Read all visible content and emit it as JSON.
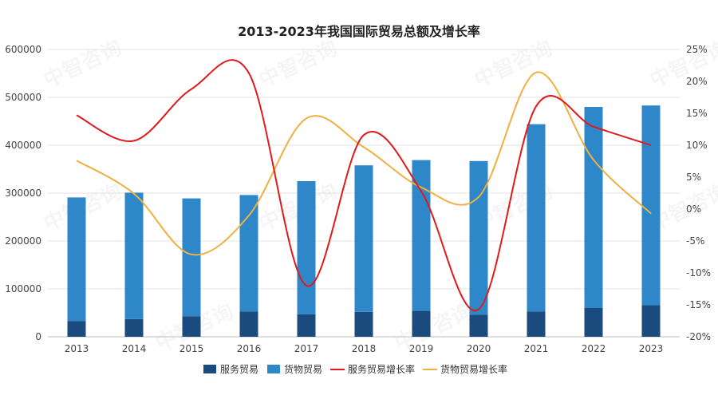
{
  "chart_data": {
    "type": "bar",
    "title": "2013-2023年我国国际贸易总额及增长率",
    "categories": [
      "2013",
      "2014",
      "2015",
      "2016",
      "2017",
      "2018",
      "2019",
      "2020",
      "2021",
      "2022",
      "2023"
    ],
    "left_axis": {
      "ylim": [
        0,
        600000
      ],
      "ticks": [
        "0",
        "100000",
        "200000",
        "300000",
        "400000",
        "500000",
        "600000"
      ]
    },
    "right_axis": {
      "ylim": [
        -20,
        25
      ],
      "unit": "%",
      "ticks": [
        "-20%",
        "-15%",
        "-10%",
        "-5%",
        "0%",
        "5%",
        "10%",
        "15%",
        "20%",
        "25%"
      ]
    },
    "series": [
      {
        "name": "服务贸易",
        "kind": "bar-stacked",
        "axis": "left",
        "color": "#1b4a7f",
        "values": [
          33000,
          37000,
          43000,
          53000,
          47000,
          52000,
          54000,
          46000,
          53000,
          60000,
          66000
        ]
      },
      {
        "name": "货物贸易",
        "kind": "bar-stacked",
        "axis": "left",
        "color": "#2e87c8",
        "values": [
          258000,
          264000,
          246000,
          243000,
          278000,
          306000,
          315000,
          321000,
          391000,
          420000,
          417000
        ]
      },
      {
        "name": "服务贸易增长率",
        "kind": "line",
        "axis": "right",
        "color": "#e0191b",
        "values": [
          14.7,
          10.7,
          18.8,
          21.3,
          -12.0,
          11.6,
          2.8,
          -15.7,
          16.1,
          12.9,
          10.0
        ]
      },
      {
        "name": "货物贸易增长率",
        "kind": "line",
        "axis": "right",
        "color": "#f0b040",
        "values": [
          7.6,
          2.4,
          -7.1,
          -1.0,
          14.2,
          9.7,
          3.4,
          1.9,
          21.4,
          7.7,
          -0.7
        ]
      }
    ],
    "grid": true,
    "legend_position": "bottom"
  },
  "watermark": {
    "text": "中智咨询"
  }
}
